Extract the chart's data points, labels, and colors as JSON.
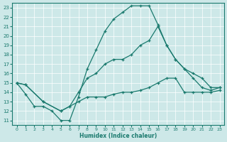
{
  "title": "",
  "xlabel": "Humidex (Indice chaleur)",
  "ylabel": "",
  "background_color": "#cde8e8",
  "line_color": "#1a7a6e",
  "xlim": [
    -0.5,
    23.5
  ],
  "ylim": [
    10.5,
    23.5
  ],
  "xticks": [
    0,
    1,
    2,
    3,
    4,
    5,
    6,
    7,
    8,
    9,
    10,
    11,
    12,
    13,
    14,
    15,
    16,
    17,
    18,
    19,
    20,
    21,
    22,
    23
  ],
  "yticks": [
    11,
    12,
    13,
    14,
    15,
    16,
    17,
    18,
    19,
    20,
    21,
    22,
    23
  ],
  "curve1_x": [
    0,
    1,
    2,
    3,
    4,
    5,
    6,
    7,
    8,
    9,
    10,
    11,
    12,
    13,
    14,
    15,
    16,
    17,
    18,
    19,
    20,
    21,
    22,
    23
  ],
  "curve1_y": [
    15.0,
    13.8,
    12.5,
    12.5,
    12.0,
    11.0,
    11.0,
    13.5,
    16.5,
    18.5,
    20.5,
    21.8,
    22.5,
    23.2,
    23.2,
    23.2,
    21.2,
    19.0,
    17.5,
    16.5,
    15.5,
    14.5,
    14.2,
    14.5
  ],
  "curve2_x": [
    0,
    1,
    3,
    5,
    6,
    7,
    8,
    9,
    10,
    11,
    12,
    13,
    14,
    15,
    16,
    17,
    18,
    19,
    20,
    21,
    22,
    23
  ],
  "curve2_y": [
    15.0,
    14.8,
    13.0,
    12.0,
    12.5,
    14.0,
    15.5,
    16.0,
    17.0,
    17.5,
    17.5,
    18.0,
    19.0,
    19.5,
    21.0,
    19.0,
    17.5,
    16.5,
    16.0,
    15.5,
    14.5,
    14.5
  ],
  "curve3_x": [
    0,
    1,
    3,
    5,
    6,
    7,
    8,
    9,
    10,
    11,
    12,
    13,
    14,
    15,
    16,
    17,
    18,
    19,
    20,
    21,
    22,
    23
  ],
  "curve3_y": [
    15.0,
    14.8,
    13.0,
    12.0,
    12.5,
    13.0,
    13.5,
    13.5,
    13.5,
    13.8,
    14.0,
    14.0,
    14.2,
    14.5,
    15.0,
    15.5,
    15.5,
    14.0,
    14.0,
    14.0,
    14.0,
    14.2
  ]
}
